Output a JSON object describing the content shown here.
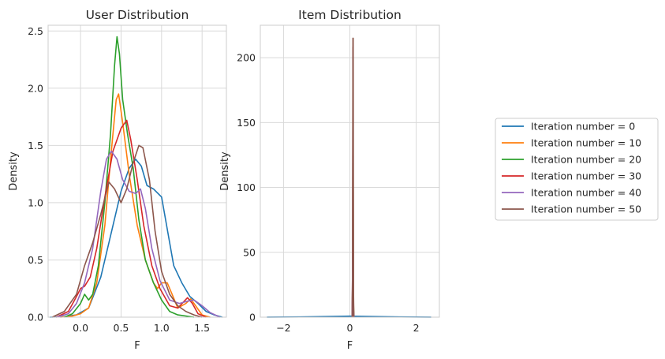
{
  "chart_data": [
    {
      "type": "line",
      "title": "User Distribution",
      "xlabel": "F",
      "ylabel": "Density",
      "xlim": [
        -0.4,
        1.8
      ],
      "ylim": [
        0,
        2.55
      ],
      "xticks": [
        "0.0",
        "0.5",
        "1.0",
        "1.5"
      ],
      "yticks": [
        "0.0",
        "0.5",
        "1.0",
        "1.5",
        "2.0",
        "2.5"
      ],
      "grid": true,
      "series": [
        {
          "name": "Iteration number = 0",
          "color": "#1f77b4",
          "points": [
            [
              -0.38,
              0
            ],
            [
              -0.2,
              0.005
            ],
            [
              -0.05,
              0.02
            ],
            [
              0.1,
              0.08
            ],
            [
              0.25,
              0.35
            ],
            [
              0.4,
              0.8
            ],
            [
              0.5,
              1.1
            ],
            [
              0.6,
              1.3
            ],
            [
              0.68,
              1.38
            ],
            [
              0.75,
              1.32
            ],
            [
              0.82,
              1.15
            ],
            [
              0.9,
              1.12
            ],
            [
              1.0,
              1.05
            ],
            [
              1.05,
              0.85
            ],
            [
              1.15,
              0.45
            ],
            [
              1.25,
              0.3
            ],
            [
              1.35,
              0.18
            ],
            [
              1.45,
              0.12
            ],
            [
              1.55,
              0.05
            ],
            [
              1.65,
              0.02
            ],
            [
              1.75,
              0.0
            ]
          ]
        },
        {
          "name": "Iteration number = 10",
          "color": "#ff7f0e",
          "points": [
            [
              -0.25,
              0
            ],
            [
              -0.1,
              0.01
            ],
            [
              0.0,
              0.03
            ],
            [
              0.1,
              0.08
            ],
            [
              0.2,
              0.3
            ],
            [
              0.3,
              0.8
            ],
            [
              0.38,
              1.45
            ],
            [
              0.44,
              1.9
            ],
            [
              0.47,
              1.95
            ],
            [
              0.52,
              1.7
            ],
            [
              0.6,
              1.25
            ],
            [
              0.7,
              0.8
            ],
            [
              0.8,
              0.5
            ],
            [
              0.9,
              0.3
            ],
            [
              0.95,
              0.25
            ],
            [
              1.0,
              0.3
            ],
            [
              1.07,
              0.3
            ],
            [
              1.13,
              0.2
            ],
            [
              1.2,
              0.08
            ],
            [
              1.3,
              0.12
            ],
            [
              1.36,
              0.16
            ],
            [
              1.42,
              0.1
            ],
            [
              1.5,
              0.02
            ],
            [
              1.6,
              0.0
            ]
          ]
        },
        {
          "name": "Iteration number = 20",
          "color": "#2ca02c",
          "points": [
            [
              -0.2,
              0
            ],
            [
              -0.1,
              0.03
            ],
            [
              0.0,
              0.12
            ],
            [
              0.05,
              0.2
            ],
            [
              0.1,
              0.15
            ],
            [
              0.15,
              0.2
            ],
            [
              0.22,
              0.45
            ],
            [
              0.3,
              1.0
            ],
            [
              0.37,
              1.6
            ],
            [
              0.42,
              2.2
            ],
            [
              0.45,
              2.45
            ],
            [
              0.48,
              2.3
            ],
            [
              0.52,
              1.9
            ],
            [
              0.58,
              1.6
            ],
            [
              0.65,
              1.3
            ],
            [
              0.72,
              0.85
            ],
            [
              0.8,
              0.5
            ],
            [
              0.9,
              0.3
            ],
            [
              1.0,
              0.15
            ],
            [
              1.1,
              0.05
            ],
            [
              1.2,
              0.02
            ],
            [
              1.4,
              0.0
            ]
          ]
        },
        {
          "name": "Iteration number = 30",
          "color": "#d62728",
          "points": [
            [
              -0.3,
              0
            ],
            [
              -0.15,
              0.05
            ],
            [
              -0.05,
              0.18
            ],
            [
              0.0,
              0.25
            ],
            [
              0.05,
              0.27
            ],
            [
              0.12,
              0.35
            ],
            [
              0.2,
              0.6
            ],
            [
              0.3,
              1.05
            ],
            [
              0.4,
              1.45
            ],
            [
              0.5,
              1.65
            ],
            [
              0.57,
              1.72
            ],
            [
              0.62,
              1.55
            ],
            [
              0.7,
              1.2
            ],
            [
              0.78,
              0.8
            ],
            [
              0.88,
              0.45
            ],
            [
              0.98,
              0.25
            ],
            [
              1.1,
              0.1
            ],
            [
              1.2,
              0.08
            ],
            [
              1.28,
              0.14
            ],
            [
              1.32,
              0.17
            ],
            [
              1.38,
              0.12
            ],
            [
              1.45,
              0.03
            ],
            [
              1.55,
              0.0
            ]
          ]
        },
        {
          "name": "Iteration number = 40",
          "color": "#9467bd",
          "points": [
            [
              -0.3,
              0
            ],
            [
              -0.15,
              0.03
            ],
            [
              -0.05,
              0.12
            ],
            [
              0.05,
              0.3
            ],
            [
              0.15,
              0.6
            ],
            [
              0.25,
              1.1
            ],
            [
              0.32,
              1.38
            ],
            [
              0.38,
              1.45
            ],
            [
              0.45,
              1.38
            ],
            [
              0.52,
              1.2
            ],
            [
              0.6,
              1.1
            ],
            [
              0.68,
              1.08
            ],
            [
              0.74,
              1.12
            ],
            [
              0.8,
              0.95
            ],
            [
              0.88,
              0.6
            ],
            [
              0.98,
              0.32
            ],
            [
              1.1,
              0.15
            ],
            [
              1.22,
              0.12
            ],
            [
              1.32,
              0.14
            ],
            [
              1.4,
              0.15
            ],
            [
              1.5,
              0.1
            ],
            [
              1.6,
              0.04
            ],
            [
              1.72,
              0.0
            ]
          ]
        },
        {
          "name": "Iteration number = 50",
          "color": "#8c564b",
          "points": [
            [
              -0.35,
              0
            ],
            [
              -0.2,
              0.05
            ],
            [
              -0.05,
              0.2
            ],
            [
              0.05,
              0.45
            ],
            [
              0.15,
              0.65
            ],
            [
              0.25,
              0.9
            ],
            [
              0.35,
              1.18
            ],
            [
              0.42,
              1.12
            ],
            [
              0.5,
              1.0
            ],
            [
              0.57,
              1.12
            ],
            [
              0.65,
              1.35
            ],
            [
              0.72,
              1.5
            ],
            [
              0.77,
              1.48
            ],
            [
              0.85,
              1.2
            ],
            [
              0.92,
              0.75
            ],
            [
              1.0,
              0.4
            ],
            [
              1.1,
              0.2
            ],
            [
              1.2,
              0.1
            ],
            [
              1.3,
              0.05
            ],
            [
              1.4,
              0.02
            ],
            [
              1.5,
              0.0
            ]
          ]
        }
      ]
    },
    {
      "type": "line",
      "title": "Item Distribution",
      "xlabel": "F",
      "ylabel": "Density",
      "xlim": [
        -2.7,
        2.7
      ],
      "ylim": [
        0,
        225
      ],
      "xticks": [
        "−2",
        "0",
        "2"
      ],
      "yticks": [
        "0",
        "50",
        "100",
        "150",
        "200"
      ],
      "grid": true,
      "series": [
        {
          "name": "Iteration number = 0",
          "color": "#1f77b4",
          "points": [
            [
              -2.5,
              0.05
            ],
            [
              -1.5,
              0.2
            ],
            [
              -0.5,
              0.6
            ],
            [
              0.0,
              0.8
            ],
            [
              0.5,
              0.6
            ],
            [
              1.5,
              0.2
            ],
            [
              2.45,
              0.05
            ]
          ]
        },
        {
          "name": "Iteration number = 10",
          "color": "#ff7f0e",
          "points": [
            [
              0.07,
              0
            ],
            [
              0.085,
              30
            ],
            [
              0.09,
              100
            ],
            [
              0.095,
              190
            ],
            [
              0.1,
              120
            ],
            [
              0.105,
              20
            ],
            [
              0.12,
              0
            ]
          ]
        },
        {
          "name": "Iteration number = 20",
          "color": "#2ca02c",
          "points": [
            [
              0.07,
              0
            ],
            [
              0.085,
              40
            ],
            [
              0.09,
              120
            ],
            [
              0.095,
              200
            ],
            [
              0.1,
              110
            ],
            [
              0.105,
              15
            ],
            [
              0.12,
              0
            ]
          ]
        },
        {
          "name": "Iteration number = 30",
          "color": "#d62728",
          "points": [
            [
              0.07,
              0
            ],
            [
              0.085,
              50
            ],
            [
              0.09,
              140
            ],
            [
              0.095,
              208
            ],
            [
              0.1,
              100
            ],
            [
              0.105,
              10
            ],
            [
              0.12,
              0
            ]
          ]
        },
        {
          "name": "Iteration number = 40",
          "color": "#9467bd",
          "points": [
            [
              0.07,
              0
            ],
            [
              0.085,
              50
            ],
            [
              0.09,
              140
            ],
            [
              0.095,
              205
            ],
            [
              0.1,
              100
            ],
            [
              0.105,
              10
            ],
            [
              0.12,
              0
            ]
          ]
        },
        {
          "name": "Iteration number = 50",
          "color": "#8c564b",
          "points": [
            [
              0.07,
              0
            ],
            [
              0.082,
              30
            ],
            [
              0.088,
              150
            ],
            [
              0.093,
              215
            ],
            [
              0.1,
              215
            ],
            [
              0.105,
              125
            ],
            [
              0.11,
              20
            ],
            [
              0.12,
              0
            ]
          ]
        }
      ]
    }
  ],
  "legend": {
    "placement": "right",
    "entries": [
      {
        "label": "Iteration number = 0",
        "color": "#1f77b4"
      },
      {
        "label": "Iteration number = 10",
        "color": "#ff7f0e"
      },
      {
        "label": "Iteration number = 20",
        "color": "#2ca02c"
      },
      {
        "label": "Iteration number = 30",
        "color": "#d62728"
      },
      {
        "label": "Iteration number = 40",
        "color": "#9467bd"
      },
      {
        "label": "Iteration number = 50",
        "color": "#8c564b"
      }
    ]
  }
}
